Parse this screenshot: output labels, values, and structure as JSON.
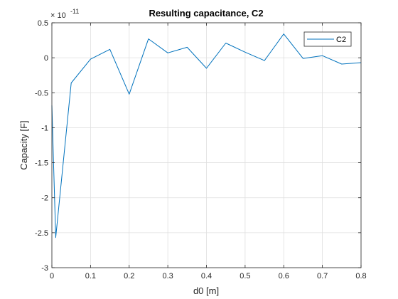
{
  "chart_data": {
    "type": "line",
    "title": "Resulting capacitance, C2",
    "xlabel": "d0 [m]",
    "ylabel": "Capacity [F]",
    "exponent_base": "× 10",
    "exponent_power": "-11",
    "xlim": [
      0,
      0.8
    ],
    "ylim": [
      -3,
      0.5
    ],
    "x_ticks": [
      0,
      0.1,
      0.2,
      0.3,
      0.4,
      0.5,
      0.6,
      0.7,
      0.8
    ],
    "x_tick_labels": [
      "0",
      "0.1",
      "0.2",
      "0.3",
      "0.4",
      "0.5",
      "0.6",
      "0.7",
      "0.8"
    ],
    "y_ticks": [
      0.5,
      0,
      -0.5,
      -1,
      -1.5,
      -2,
      -2.5,
      -3
    ],
    "y_tick_labels": [
      "0.5",
      "0",
      "-0.5",
      "-1",
      "-1.5",
      "-2",
      "-2.5",
      "-3"
    ],
    "grid": true,
    "legend_position": "top-right",
    "series": [
      {
        "name": "C2",
        "color": "#0072BD",
        "x": [
          0,
          0.01,
          0.05,
          0.1,
          0.15,
          0.2,
          0.25,
          0.3,
          0.35,
          0.4,
          0.45,
          0.5,
          0.55,
          0.6,
          0.65,
          0.7,
          0.75,
          0.8
        ],
        "y": [
          -0.68,
          -2.57,
          -0.36,
          -0.02,
          0.12,
          -0.52,
          0.27,
          0.07,
          0.15,
          -0.15,
          0.21,
          0.08,
          -0.04,
          0.34,
          -0.01,
          0.03,
          -0.09,
          -0.07
        ]
      }
    ]
  }
}
